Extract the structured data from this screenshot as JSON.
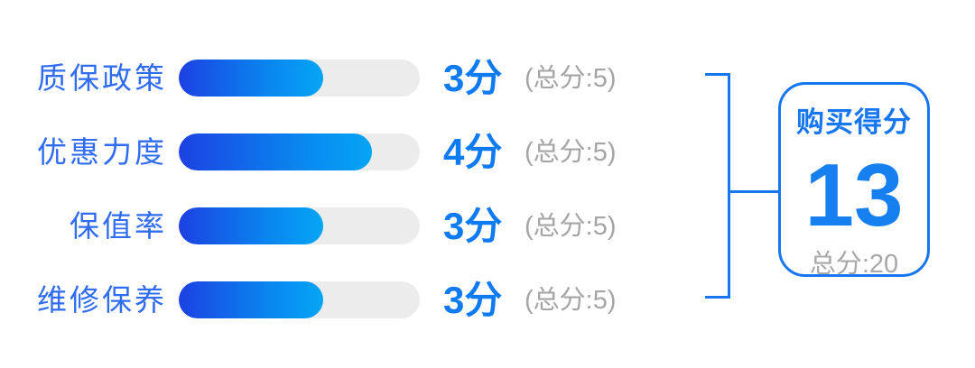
{
  "colors": {
    "label_blue": "#2F6CF0",
    "score_blue": "#0E7BF3",
    "accent_blue": "#1677F0",
    "summary_number_blue": "#1680F0",
    "secondary_gray": "#A5A5A5",
    "bar_track_gray": "#ECECEC",
    "bar_fill_gradient_start": "#1C41E2",
    "bar_fill_gradient_end": "#05A5F6",
    "background": "#FFFFFF"
  },
  "chart_data": {
    "type": "bar",
    "orientation": "horizontal",
    "title": "",
    "categories": [
      "质保政策",
      "优惠力度",
      "保值率",
      "维修保养"
    ],
    "values": [
      3,
      4,
      3,
      3
    ],
    "max_value": 5,
    "value_labels": [
      "3分",
      "4分",
      "3分",
      "3分"
    ],
    "max_labels": [
      "(总分:5)",
      "(总分:5)",
      "(总分:5)",
      "(总分:5)"
    ],
    "xlim": [
      0,
      5
    ],
    "grid": false,
    "legend": "none",
    "summary": {
      "title": "购买得分",
      "score": 13,
      "max_total": 20
    }
  },
  "rows": [
    {
      "label": "质保政策",
      "score": "3分",
      "total": "(总分:5)"
    },
    {
      "label": "优惠力度",
      "score": "4分",
      "total": "(总分:5)"
    },
    {
      "label": "保值率",
      "score": "3分",
      "total": "(总分:5)"
    },
    {
      "label": "维修保养",
      "score": "3分",
      "total": "(总分:5)"
    }
  ],
  "summary": {
    "title": "购买得分",
    "score": "13",
    "total": "总分:20"
  }
}
